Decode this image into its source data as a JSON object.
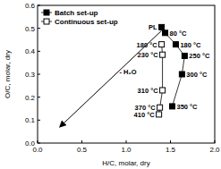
{
  "chart_data": {
    "type": "scatter",
    "x_label": "H/C, molar, dry",
    "y_label": "O/C, molar, dry",
    "xlim": [
      0.0,
      2.0
    ],
    "xticks": [
      {
        "value": 0,
        "label": "0.0"
      },
      {
        "value": 0.5,
        "label": "0.5"
      },
      {
        "value": 1,
        "label": "1.0"
      },
      {
        "value": 1.5,
        "label": "1.5"
      },
      {
        "value": 2,
        "label": "2.0"
      }
    ],
    "ylim": [
      0.0,
      0.6
    ],
    "yticks": [
      {
        "value": 0,
        "label": "0.0"
      },
      {
        "value": 0.1,
        "label": "0.1"
      },
      {
        "value": 0.2,
        "label": "0.2"
      },
      {
        "value": 0.3,
        "label": "0.3"
      },
      {
        "value": 0.4,
        "label": "0.4"
      },
      {
        "value": 0.5,
        "label": "0.5"
      },
      {
        "value": 0.6,
        "label": "0.6"
      }
    ],
    "legend": "top-left",
    "series": [
      {
        "name": "Batch set-up",
        "color": "#000000",
        "marker": "filled-square",
        "line_style": "solid",
        "x": [
          1.4,
          1.44,
          1.56,
          1.66,
          1.63,
          1.52
        ],
        "values": [
          0.505,
          0.48,
          0.43,
          0.38,
          0.3,
          0.16
        ],
        "point_labels": [
          "PL",
          "80 °C",
          "180 °C",
          "250 °C",
          "300 °C",
          "350 °C"
        ]
      },
      {
        "name": "Continuous set-up",
        "color": "#000000",
        "marker": "open-square",
        "line_style": "solid",
        "x": [
          1.4,
          1.41,
          1.41,
          1.38,
          1.37
        ],
        "values": [
          0.43,
          0.385,
          0.23,
          0.155,
          0.125
        ],
        "point_labels": [
          "180 °C",
          "230 °C",
          "310 °C",
          "370 °C",
          "410 °C"
        ]
      }
    ],
    "annotations": [
      {
        "text": "- H₂O",
        "x": 1.02,
        "y": 0.3
      }
    ],
    "arrow": {
      "x": [
        1.4,
        0.25
      ],
      "y": [
        0.49,
        0.07
      ]
    }
  }
}
